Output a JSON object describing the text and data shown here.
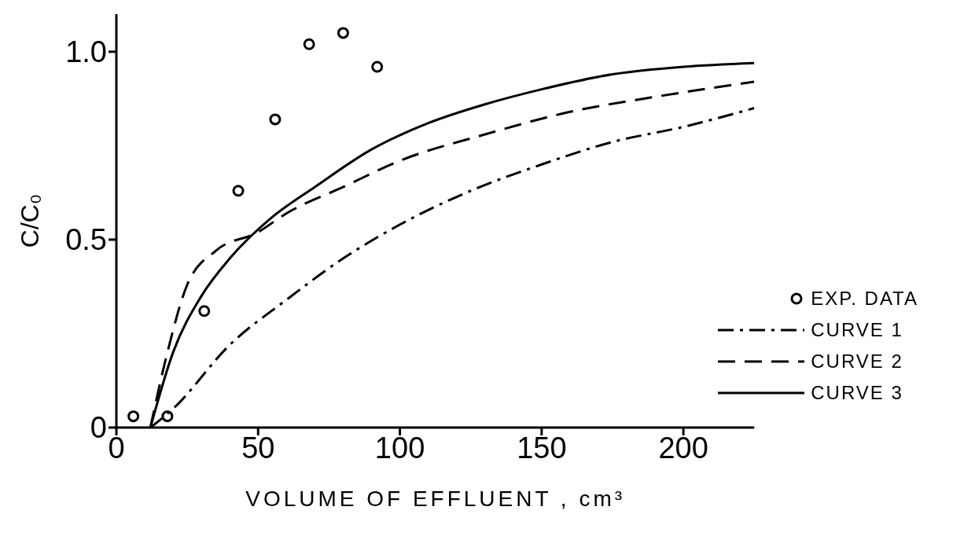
{
  "chart_data": {
    "type": "line",
    "xlabel": "VOLUME OF EFFLUENT , cm³",
    "ylabel": "C/C₀",
    "xlim": [
      0,
      225
    ],
    "xticks": [
      0,
      50,
      100,
      150,
      200
    ],
    "ylim": [
      0,
      1.1
    ],
    "yticks": [
      0,
      {
        "value": 0.5,
        "label": "0.5"
      },
      {
        "value": 1,
        "label": "1.0"
      }
    ],
    "grid": false,
    "legend": "bottom right",
    "series": [
      {
        "name": "EXP. DATA",
        "type": "scatter",
        "marker": "circle",
        "color": "#000000",
        "x": [
          6,
          18,
          31,
          43,
          56,
          68,
          80,
          92
        ],
        "values": [
          0.03,
          0.03,
          0.31,
          0.63,
          0.82,
          1.02,
          1.05,
          0.96
        ]
      },
      {
        "name": "CURVE  1",
        "line_style": "dashdot",
        "color": "#000000",
        "x": [
          12,
          20,
          40,
          60,
          80,
          100,
          125,
          150,
          175,
          200,
          225
        ],
        "values": [
          0,
          0.05,
          0.22,
          0.34,
          0.45,
          0.54,
          0.63,
          0.7,
          0.76,
          0.8,
          0.85
        ]
      },
      {
        "name": "CURVE  2",
        "line_style": "dashed",
        "color": "#000000",
        "x": [
          12,
          18,
          25,
          35,
          50,
          60,
          80,
          100,
          130,
          160,
          190,
          225
        ],
        "values": [
          0,
          0.2,
          0.38,
          0.47,
          0.52,
          0.57,
          0.64,
          0.71,
          0.78,
          0.84,
          0.88,
          0.92
        ]
      },
      {
        "name": "CURVE  3",
        "line_style": "solid",
        "color": "#000000",
        "x": [
          12,
          20,
          30,
          40,
          55,
          70,
          90,
          110,
          130,
          150,
          175,
          200,
          225
        ],
        "values": [
          0,
          0.2,
          0.35,
          0.45,
          0.56,
          0.64,
          0.74,
          0.81,
          0.86,
          0.9,
          0.94,
          0.96,
          0.97
        ]
      }
    ]
  }
}
